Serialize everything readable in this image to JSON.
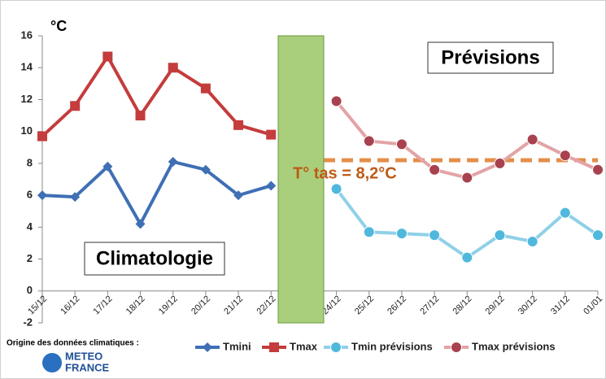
{
  "chart_data": {
    "type": "line",
    "y_unit": "°C",
    "categories": [
      "15/12",
      "16/12",
      "17/12",
      "18/12",
      "19/12",
      "20/12",
      "21/12",
      "22/12",
      null,
      "24/12",
      "25/12",
      "26/12",
      "27/12",
      "28/12",
      "29/12",
      "30/12",
      "31/12",
      "01/01"
    ],
    "series": [
      {
        "name": "Tmini",
        "color": "#3f6fb5",
        "marker_color": "#3f6fb5",
        "marker": "diamond",
        "values": [
          6.0,
          5.9,
          7.8,
          4.2,
          8.1,
          7.6,
          6.0,
          6.6,
          null,
          null,
          null,
          null,
          null,
          null,
          null,
          null,
          null,
          null
        ]
      },
      {
        "name": "Tmax",
        "color": "#c43c3c",
        "marker_color": "#c43c3c",
        "marker": "square",
        "values": [
          9.7,
          11.6,
          14.7,
          11.0,
          14.0,
          12.7,
          10.4,
          9.8,
          null,
          null,
          null,
          null,
          null,
          null,
          null,
          null,
          null,
          null
        ]
      },
      {
        "name": "Tmin prévisions",
        "color": "#8fd0e8",
        "marker_color": "#4fb8dc",
        "marker": "circle",
        "values": [
          null,
          null,
          null,
          null,
          null,
          null,
          null,
          null,
          null,
          6.4,
          3.7,
          3.6,
          3.5,
          2.1,
          3.5,
          3.1,
          4.9,
          3.5
        ]
      },
      {
        "name": "Tmax prévisions",
        "color": "#e3a3a6",
        "marker_color": "#a8424f",
        "marker": "circle",
        "values": [
          null,
          null,
          null,
          null,
          null,
          null,
          null,
          null,
          null,
          11.9,
          9.4,
          9.2,
          7.6,
          7.1,
          8.0,
          9.5,
          8.5,
          7.6
        ]
      }
    ],
    "ylim": [
      -2,
      16
    ],
    "yticks": [
      -2,
      0,
      2,
      4,
      6,
      8,
      10,
      12,
      14,
      16
    ],
    "reference_line": {
      "value": 8.2,
      "label": "T° tas = 8,2°C",
      "color": "#e07b2a"
    },
    "annotations": [
      "Climatologie",
      "Prévisions"
    ],
    "source": "Origine des données climatiques :",
    "logo": [
      "METEO",
      "FRANCE"
    ]
  }
}
